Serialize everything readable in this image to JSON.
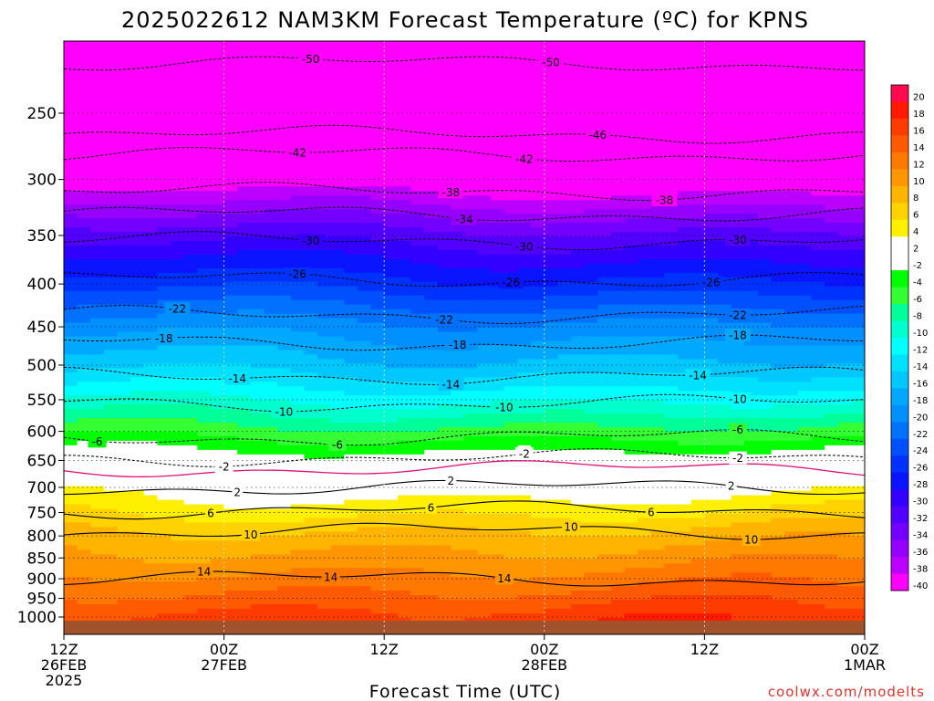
{
  "chart_data": {
    "type": "heatmap",
    "title": "2025022612 NAM3KM Forecast Temperature (ºC) for KPNS",
    "xlabel": "Forecast Time (UTC)",
    "ylabel": "",
    "credit": "coolwx.com/modelts",
    "x_ticks": [
      {
        "line1": "12Z",
        "line2": "26FEB",
        "line3": "2025",
        "hour": 0
      },
      {
        "line1": "00Z",
        "line2": "27FEB",
        "line3": "",
        "hour": 12
      },
      {
        "line1": "12Z",
        "line2": "",
        "line3": "",
        "hour": 24
      },
      {
        "line1": "00Z",
        "line2": "28FEB",
        "line3": "",
        "hour": 36
      },
      {
        "line1": "12Z",
        "line2": "",
        "line3": "",
        "hour": 48
      },
      {
        "line1": "00Z",
        "line2": "1MAR",
        "line3": "",
        "hour": 60
      }
    ],
    "xlim_hours": [
      0,
      60
    ],
    "y_ticks": [
      250,
      300,
      350,
      400,
      450,
      500,
      550,
      600,
      650,
      700,
      750,
      800,
      850,
      900,
      950,
      1000
    ],
    "ylim_hPa": [
      1015,
      200
    ],
    "y_scale": "log",
    "grid": true,
    "colorbar": {
      "placement": "right",
      "levels": [
        20,
        18,
        16,
        14,
        12,
        10,
        8,
        6,
        4,
        2,
        -2,
        -4,
        -6,
        -8,
        -10,
        -12,
        -14,
        -16,
        -18,
        -20,
        -22,
        -24,
        -26,
        -28,
        -30,
        -32,
        -34,
        -36,
        -38,
        -40
      ],
      "colors": [
        "#ff0a50",
        "#ff1a00",
        "#ff3c00",
        "#ff5a00",
        "#ff7800",
        "#ff9600",
        "#ffb400",
        "#ffd200",
        "#ffef00",
        "#ffffff",
        "#ffffff",
        "#00ff00",
        "#33ff33",
        "#00ff99",
        "#00ffcc",
        "#00ffff",
        "#00e0ff",
        "#00c8ff",
        "#00a8ff",
        "#0090ff",
        "#0072ff",
        "#0050ff",
        "#0032ff",
        "#0a14ff",
        "#3300ff",
        "#5200ff",
        "#7400ff",
        "#9600ff",
        "#bc00ff",
        "#ff00ff"
      ]
    },
    "temperature_profile": [
      {
        "p": 1000,
        "t": 17
      },
      {
        "p": 950,
        "t": 15
      },
      {
        "p": 900,
        "t": 13
      },
      {
        "p": 850,
        "t": 11
      },
      {
        "p": 800,
        "t": 9
      },
      {
        "p": 750,
        "t": 6
      },
      {
        "p": 700,
        "t": 3
      },
      {
        "p": 650,
        "t": 0
      },
      {
        "p": 600,
        "t": -5
      },
      {
        "p": 550,
        "t": -10
      },
      {
        "p": 500,
        "t": -15
      },
      {
        "p": 450,
        "t": -19
      },
      {
        "p": 400,
        "t": -25
      },
      {
        "p": 350,
        "t": -31
      },
      {
        "p": 300,
        "t": -40
      },
      {
        "p": 250,
        "t": -46
      },
      {
        "p": 200,
        "t": -52
      }
    ],
    "contours": [
      {
        "value": 14,
        "p": 900,
        "style": "solid",
        "labels": [
          {
            "text": "14",
            "hour": 10.5
          },
          {
            "text": "14",
            "hour": 20
          },
          {
            "text": "14",
            "hour": 33
          }
        ]
      },
      {
        "value": 10,
        "p": 790,
        "style": "solid",
        "labels": [
          {
            "text": "10",
            "hour": 14
          },
          {
            "text": "10",
            "hour": 38
          },
          {
            "text": "10",
            "hour": 51.5
          }
        ]
      },
      {
        "value": 6,
        "p": 745,
        "style": "solid",
        "labels": [
          {
            "text": "6",
            "hour": 11
          },
          {
            "text": "6",
            "hour": 27.5
          },
          {
            "text": "6",
            "hour": 44
          }
        ]
      },
      {
        "value": 2,
        "p": 700,
        "style": "solid",
        "labels": [
          {
            "text": "2",
            "hour": 13
          },
          {
            "text": "2",
            "hour": 29
          },
          {
            "text": "2",
            "hour": 50
          }
        ]
      },
      {
        "value": 0,
        "p": 665,
        "style": "magenta",
        "labels": []
      },
      {
        "value": -2,
        "p": 645,
        "style": "dashed",
        "labels": [
          {
            "text": "-2",
            "hour": 12
          },
          {
            "text": "-2",
            "hour": 34.5
          },
          {
            "text": "-2",
            "hour": 50.5
          }
        ]
      },
      {
        "value": -6,
        "p": 610,
        "style": "dashed",
        "labels": [
          {
            "text": "-6",
            "hour": 2.5
          },
          {
            "text": "-6",
            "hour": 20.5
          },
          {
            "text": "-6",
            "hour": 50.5
          }
        ]
      },
      {
        "value": -10,
        "p": 555,
        "style": "dashed",
        "labels": [
          {
            "text": "-10",
            "hour": 16.5
          },
          {
            "text": "-10",
            "hour": 33
          },
          {
            "text": "-10",
            "hour": 50.5
          }
        ]
      },
      {
        "value": -14,
        "p": 515,
        "style": "dashed",
        "labels": [
          {
            "text": "-14",
            "hour": 13
          },
          {
            "text": "-14",
            "hour": 29
          },
          {
            "text": "-14",
            "hour": 47.5
          }
        ]
      },
      {
        "value": -18,
        "p": 470,
        "style": "dashed",
        "labels": [
          {
            "text": "-18",
            "hour": 7.5
          },
          {
            "text": "-18",
            "hour": 29.5
          },
          {
            "text": "-18",
            "hour": 50.5
          }
        ]
      },
      {
        "value": -22,
        "p": 435,
        "style": "dashed",
        "labels": [
          {
            "text": "-22",
            "hour": 8.5
          },
          {
            "text": "-22",
            "hour": 28.5
          },
          {
            "text": "-22",
            "hour": 50.5
          }
        ]
      },
      {
        "value": -26,
        "p": 395,
        "style": "dashed",
        "labels": [
          {
            "text": "-26",
            "hour": 17.5
          },
          {
            "text": "-26",
            "hour": 33.5
          },
          {
            "text": "-26",
            "hour": 48.5
          }
        ]
      },
      {
        "value": -30,
        "p": 355,
        "style": "dashed",
        "labels": [
          {
            "text": "-30",
            "hour": 18.5
          },
          {
            "text": "-30",
            "hour": 34.5
          },
          {
            "text": "-30",
            "hour": 50.5
          }
        ]
      },
      {
        "value": -34,
        "p": 330,
        "style": "dashed",
        "labels": [
          {
            "text": "-34",
            "hour": 30
          }
        ]
      },
      {
        "value": -38,
        "p": 310,
        "style": "dashed",
        "labels": [
          {
            "text": "-38",
            "hour": 29
          },
          {
            "text": "-38",
            "hour": 45
          }
        ]
      },
      {
        "value": -42,
        "p": 280,
        "style": "dashed",
        "labels": [
          {
            "text": "-42",
            "hour": 17.5
          },
          {
            "text": "-42",
            "hour": 34.5
          }
        ]
      },
      {
        "value": -46,
        "p": 265,
        "style": "dashed",
        "labels": [
          {
            "text": "-46",
            "hour": 40
          }
        ]
      },
      {
        "value": -50,
        "p": 218,
        "style": "dashed",
        "labels": [
          {
            "text": "-50",
            "hour": 18.5
          },
          {
            "text": "-50",
            "hour": 36.5
          }
        ]
      }
    ],
    "surface_color": "#a0522d"
  }
}
